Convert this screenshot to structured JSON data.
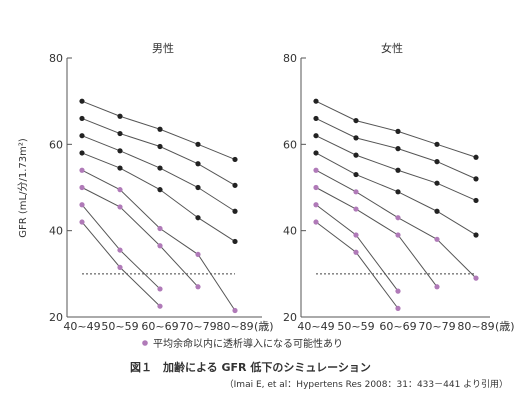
{
  "chart_data": {
    "type": "line",
    "y_axis_label": "GFR (mL/分/1.73m²)",
    "ylim": [
      20,
      80
    ],
    "y_ticks": [
      20,
      40,
      60,
      80
    ],
    "categories": [
      "40~49",
      "50~59",
      "60~69",
      "70~79",
      "80~89"
    ],
    "x_unit": "(歳)",
    "reference_y": 30,
    "colors": {
      "black": "#222222",
      "purple": "#b07ab8"
    },
    "panels": [
      {
        "title": "男性",
        "series": [
          {
            "color": "black",
            "points": [
              [
                0,
                70
              ],
              [
                1,
                66.5
              ],
              [
                2,
                63.5
              ],
              [
                3,
                60
              ],
              [
                4,
                56.5
              ]
            ]
          },
          {
            "color": "black",
            "points": [
              [
                0,
                66
              ],
              [
                1,
                62.5
              ],
              [
                2,
                59.5
              ],
              [
                3,
                55.5
              ],
              [
                4,
                50.5
              ]
            ]
          },
          {
            "color": "black",
            "points": [
              [
                0,
                62
              ],
              [
                1,
                58.5
              ],
              [
                2,
                54.5
              ],
              [
                3,
                50
              ],
              [
                4,
                44.5
              ]
            ]
          },
          {
            "color": "black",
            "points": [
              [
                0,
                58
              ],
              [
                1,
                54.5
              ],
              [
                2,
                49.5
              ],
              [
                3,
                43
              ],
              [
                4,
                37.5
              ]
            ]
          },
          {
            "color": "purple",
            "points": [
              [
                0,
                54
              ],
              [
                1,
                49.5
              ],
              [
                2,
                40.5
              ],
              [
                3,
                34.5
              ],
              [
                4,
                21.5
              ]
            ]
          },
          {
            "color": "purple",
            "points": [
              [
                0,
                50
              ],
              [
                1,
                45.5
              ],
              [
                2,
                36.5
              ],
              [
                3,
                27
              ]
            ]
          },
          {
            "color": "purple",
            "points": [
              [
                0,
                46
              ],
              [
                1,
                35.5
              ],
              [
                2,
                26.5
              ]
            ]
          },
          {
            "color": "purple",
            "points": [
              [
                0,
                42
              ],
              [
                1,
                31.5
              ],
              [
                2,
                22.5
              ]
            ]
          }
        ]
      },
      {
        "title": "女性",
        "series": [
          {
            "color": "black",
            "points": [
              [
                0,
                70
              ],
              [
                1,
                65.5
              ],
              [
                2,
                63
              ],
              [
                3,
                60
              ],
              [
                4,
                57
              ]
            ]
          },
          {
            "color": "black",
            "points": [
              [
                0,
                66
              ],
              [
                1,
                61.5
              ],
              [
                2,
                59
              ],
              [
                3,
                56
              ],
              [
                4,
                52
              ]
            ]
          },
          {
            "color": "black",
            "points": [
              [
                0,
                62
              ],
              [
                1,
                57.5
              ],
              [
                2,
                54
              ],
              [
                3,
                51
              ],
              [
                4,
                47
              ]
            ]
          },
          {
            "color": "black",
            "points": [
              [
                0,
                58
              ],
              [
                1,
                53
              ],
              [
                2,
                49
              ],
              [
                3,
                44.5
              ],
              [
                4,
                39
              ]
            ]
          },
          {
            "color": "purple",
            "points": [
              [
                0,
                54
              ],
              [
                1,
                49
              ],
              [
                2,
                43
              ],
              [
                3,
                38
              ],
              [
                4,
                29
              ]
            ]
          },
          {
            "color": "purple",
            "points": [
              [
                0,
                50
              ],
              [
                1,
                45
              ],
              [
                2,
                39
              ],
              [
                3,
                27
              ]
            ]
          },
          {
            "color": "purple",
            "points": [
              [
                0,
                46
              ],
              [
                1,
                39
              ],
              [
                2,
                26
              ]
            ]
          },
          {
            "color": "purple",
            "points": [
              [
                0,
                42
              ],
              [
                1,
                35
              ],
              [
                2,
                22
              ]
            ]
          }
        ]
      }
    ],
    "legend": {
      "marker_color": "purple",
      "text": "平均余命以内に透析導入になる可能性あり"
    }
  },
  "caption": {
    "title": "図１　加齢による GFR 低下のシミュレーション",
    "citation": "（Imai E, et al：Hypertens Res 2008：31：433－441 より引用）"
  }
}
